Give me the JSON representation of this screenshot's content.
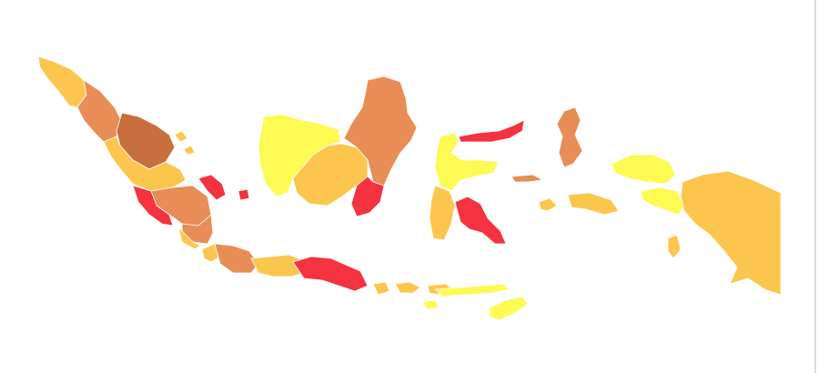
{
  "map": {
    "country": "",
    "legend_colors": {
      "very_high": "#c96f3e",
      "high": "#e98d57",
      "medium": "#fcc64e",
      "low": "#fdfa54",
      "critical": "#f5323f"
    },
    "regions": [
      {
        "id": "aceh",
        "level": "medium"
      },
      {
        "id": "north-sumatra",
        "level": "high"
      },
      {
        "id": "riau",
        "level": "very_high"
      },
      {
        "id": "west-sumatra",
        "level": "medium"
      },
      {
        "id": "jambi",
        "level": "high"
      },
      {
        "id": "south-sumatra",
        "level": "high"
      },
      {
        "id": "bengkulu",
        "level": "critical"
      },
      {
        "id": "lampung",
        "level": "medium"
      },
      {
        "id": "bangka-belitung",
        "level": "critical"
      },
      {
        "id": "riau-islands",
        "level": "medium"
      },
      {
        "id": "banten",
        "level": "medium"
      },
      {
        "id": "west-java",
        "level": "high"
      },
      {
        "id": "central-java",
        "level": "medium"
      },
      {
        "id": "east-java",
        "level": "critical"
      },
      {
        "id": "bali",
        "level": "medium"
      },
      {
        "id": "west-kalimantan",
        "level": "low"
      },
      {
        "id": "central-kalimantan",
        "level": "medium"
      },
      {
        "id": "east-kalimantan",
        "level": "high"
      },
      {
        "id": "south-kalimantan",
        "level": "critical"
      },
      {
        "id": "north-sulawesi",
        "level": "critical"
      },
      {
        "id": "central-sulawesi",
        "level": "low"
      },
      {
        "id": "south-sulawesi",
        "level": "medium"
      },
      {
        "id": "southeast-sulawesi",
        "level": "critical"
      },
      {
        "id": "north-maluku",
        "level": "high"
      },
      {
        "id": "maluku",
        "level": "medium"
      },
      {
        "id": "west-papua",
        "level": "low"
      },
      {
        "id": "papua",
        "level": "medium"
      },
      {
        "id": "west-nusa-tenggara",
        "level": "medium"
      },
      {
        "id": "east-nusa-tenggara",
        "level": "low"
      }
    ]
  }
}
